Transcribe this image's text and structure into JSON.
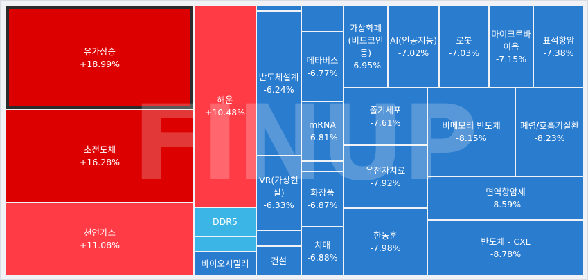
{
  "watermark": "FINUP",
  "tiles": [
    {
      "label": "유가상승",
      "change": "+18.99%"
    },
    {
      "label": "초전도체",
      "change": "+16.28%"
    },
    {
      "label": "천연가스",
      "change": "+11.08%"
    },
    {
      "label": "해운",
      "change": "+10.48%"
    },
    {
      "label": "DDR5"
    },
    {
      "label": "바이오시밀러"
    },
    {
      "label": "반도체설계",
      "change": "-6.24%"
    },
    {
      "label": "VR(가상현실)",
      "change": "-6.33%"
    },
    {
      "label": "건설"
    },
    {
      "label": "메타버스",
      "change": "-6.77%"
    },
    {
      "label": "mRNA",
      "change": "-6.81%"
    },
    {
      "label": "화장품",
      "change": "-6.87%"
    },
    {
      "label": "치매",
      "change": "-6.88%"
    },
    {
      "label": "가상화폐(비트코인 등)",
      "change": "-6.95%"
    },
    {
      "label": "AI(인공지능)",
      "change": "-7.02%"
    },
    {
      "label": "로봇",
      "change": "-7.03%"
    },
    {
      "label": "마이크로바이옴",
      "change": "-7.15%"
    },
    {
      "label": "표적항암",
      "change": "-7.38%"
    },
    {
      "label": "줄기세포",
      "change": "-7.61%"
    },
    {
      "label": "유전자치료",
      "change": "-7.92%"
    },
    {
      "label": "한동훈",
      "change": "-7.98%"
    },
    {
      "label": "비메모리 반도체",
      "change": "-8.15%"
    },
    {
      "label": "폐렴/호흡기질환",
      "change": "-8.23%"
    },
    {
      "label": "면역항암제",
      "change": "-8.59%"
    },
    {
      "label": "반도체 - CXL",
      "change": "-8.78%"
    }
  ]
}
